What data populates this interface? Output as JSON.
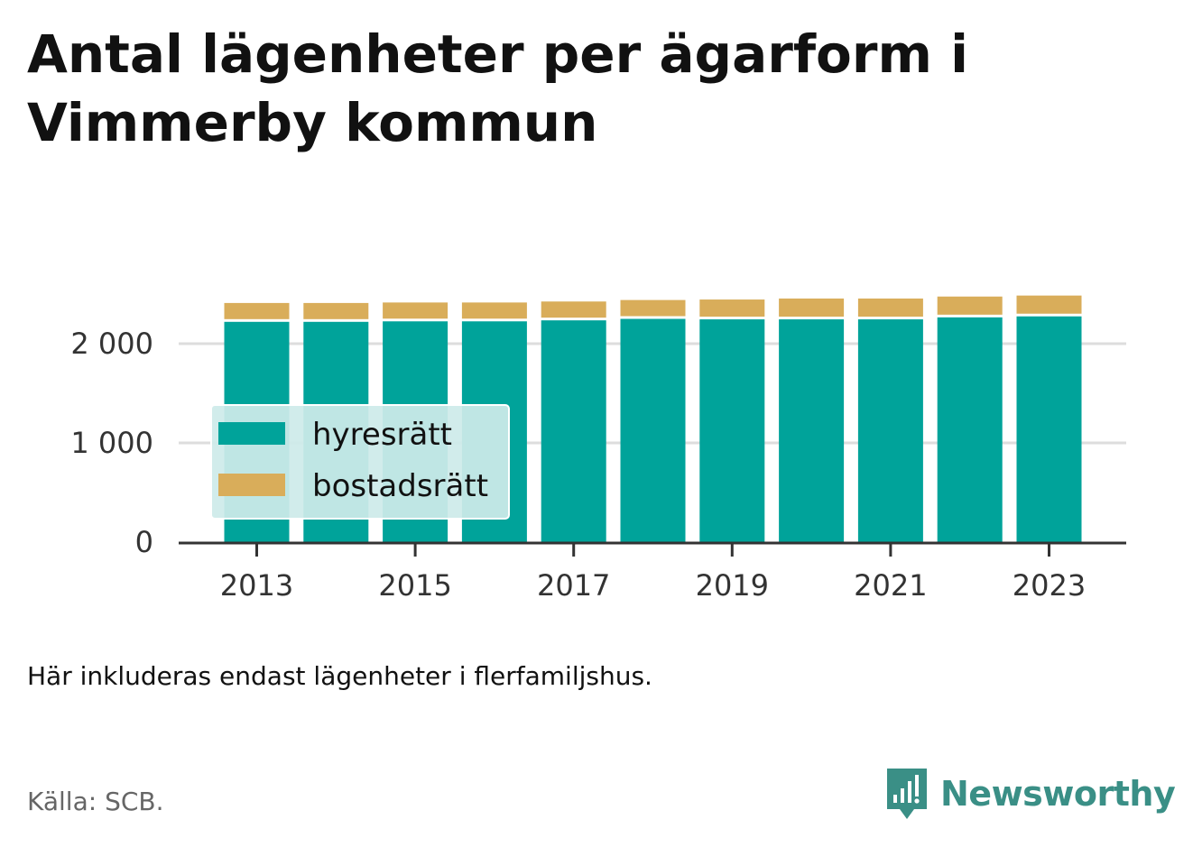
{
  "title": "Antal lägenheter per ägarform i Vimmerby kommun",
  "note": "Här inkluderas endast lägenheter i flerfamiljshus.",
  "source": "Källa: SCB.",
  "brand": "Newsworthy",
  "colors": {
    "hyresratt": "#00a39a",
    "bostadsratt": "#d9ad5a",
    "grid": "#dddddd",
    "axis": "#333333",
    "legend_bg": "#cdebe9",
    "brand": "#3a8f86"
  },
  "chart_data": {
    "type": "bar",
    "stacked": true,
    "categories": [
      "2013",
      "2014",
      "2015",
      "2016",
      "2017",
      "2018",
      "2019",
      "2020",
      "2021",
      "2022",
      "2023"
    ],
    "x_tick_labels": [
      "2013",
      "2015",
      "2017",
      "2019",
      "2021",
      "2023"
    ],
    "series": [
      {
        "name": "hyresrätt",
        "values": [
          2220,
          2220,
          2225,
          2225,
          2235,
          2250,
          2245,
          2245,
          2245,
          2265,
          2275
        ]
      },
      {
        "name": "bostadsrätt",
        "values": [
          190,
          190,
          190,
          190,
          190,
          190,
          200,
          210,
          210,
          210,
          210
        ]
      }
    ],
    "y_ticks": [
      0,
      1000,
      2000
    ],
    "y_tick_labels": [
      "0",
      "1 000",
      "2 000"
    ],
    "ylim": [
      0,
      2700
    ],
    "grid": true,
    "legend_position": "bottom-left, inside plot"
  }
}
